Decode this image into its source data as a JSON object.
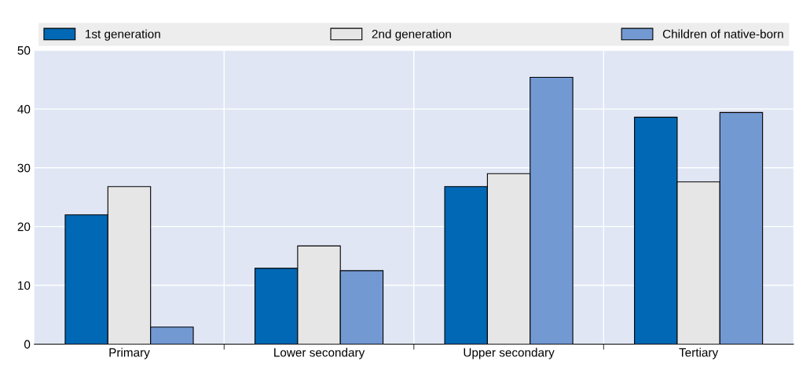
{
  "chart_data": {
    "type": "bar",
    "categories": [
      "Primary",
      "Lower secondary",
      "Upper secondary",
      "Tertiary"
    ],
    "series": [
      {
        "name": "1st generation",
        "color": "#0068b4",
        "values": [
          22.0,
          12.9,
          26.8,
          38.6
        ]
      },
      {
        "name": "2nd generation",
        "color": "#e6e6e6",
        "values": [
          26.8,
          16.7,
          29.0,
          27.6
        ]
      },
      {
        "name": "Children of native-born",
        "color": "#7399d3",
        "values": [
          2.9,
          12.5,
          45.4,
          39.4
        ]
      }
    ],
    "ylim": [
      0,
      50
    ],
    "yticks": [
      0,
      10,
      20,
      30,
      40,
      50
    ],
    "grid": true,
    "legend": "top"
  }
}
